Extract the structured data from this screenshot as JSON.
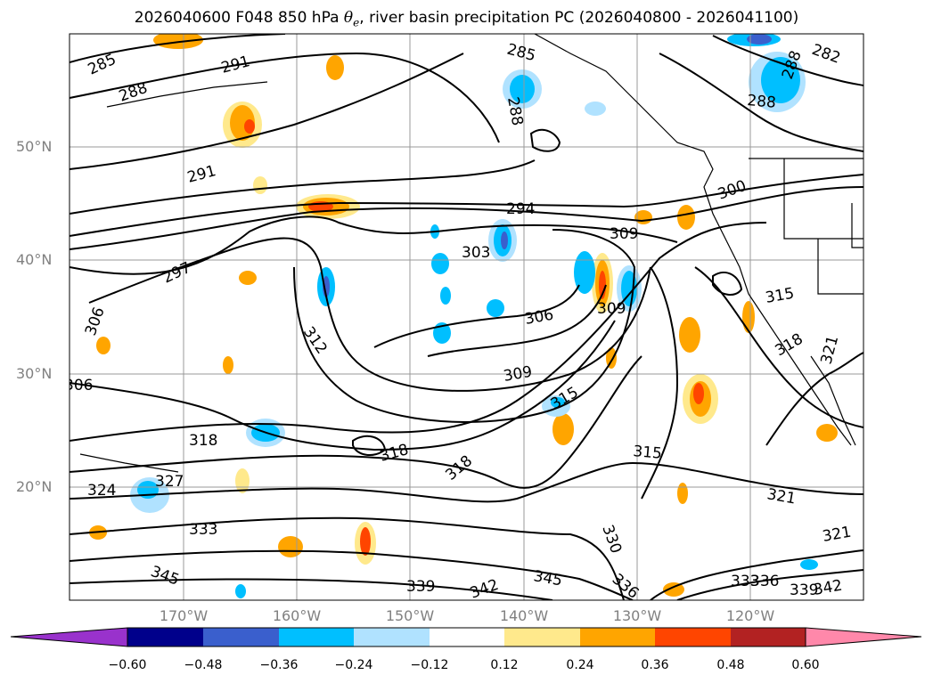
{
  "title": {
    "prefix": "2026040600 F048 850 hPa ",
    "theta": "θ",
    "theta_sub": "e",
    "suffix": ", river basin precipitation PC (2026040800 - 2026041100)"
  },
  "axes": {
    "lat_labels": [
      "50°N",
      "40°N",
      "30°N",
      "20°N"
    ],
    "lon_labels": [
      "170°W",
      "160°W",
      "150°W",
      "140°W",
      "130°W",
      "120°W"
    ]
  },
  "contour_labels": [
    "285",
    "288",
    "291",
    "291",
    "297",
    "306",
    "306",
    "294",
    "303",
    "306",
    "309",
    "309",
    "312",
    "315",
    "318",
    "318",
    "318",
    "324",
    "327",
    "333",
    "345",
    "339",
    "342",
    "345",
    "330",
    "336",
    "333",
    "336",
    "339",
    "342",
    "315",
    "321",
    "321",
    "300",
    "309",
    "315",
    "318",
    "321",
    "282",
    "285",
    "288",
    "288",
    "288",
    "300"
  ],
  "colorbar": {
    "ticks": [
      "−0.60",
      "−0.48",
      "−0.36",
      "−0.24",
      "−0.12",
      "0.12",
      "0.24",
      "0.36",
      "0.48",
      "0.60"
    ],
    "colors": [
      "#9932cc",
      "#00008b",
      "#3a5fcd",
      "#00bfff",
      "#b0e2ff",
      "#ffffff",
      "#ffe98c",
      "#ffa500",
      "#ff4500",
      "#b22222",
      "#ff88aa"
    ]
  },
  "colors": {
    "positive_light": "#ffe98c",
    "positive_mid": "#ffa500",
    "positive_strong": "#ff4500",
    "negative_light": "#b0e2ff",
    "negative_mid": "#00bfff",
    "negative_strong": "#3a5fcd"
  }
}
